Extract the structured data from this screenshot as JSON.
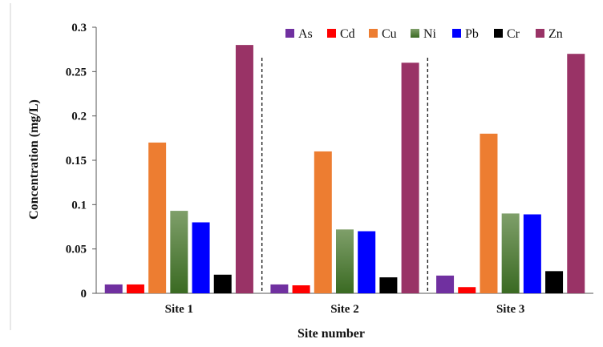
{
  "chart_data": {
    "type": "bar",
    "title": "",
    "xlabel": "Site number",
    "ylabel": "Concentration  (mg/L)",
    "ylim": [
      0,
      0.3
    ],
    "yticks": [
      "0",
      "0.05",
      "0.1",
      "0.15",
      "0.2",
      "0.25",
      "0.3"
    ],
    "grid": false,
    "legend_position": "top-right",
    "categories": [
      "Site 1",
      "Site 2",
      "Site 3"
    ],
    "series": [
      {
        "name": "As",
        "color": "#7030a0",
        "values": [
          0.01,
          0.01,
          0.02
        ]
      },
      {
        "name": "Cd",
        "color": "#ff0000",
        "values": [
          0.01,
          0.009,
          0.007
        ]
      },
      {
        "name": "Cu",
        "color": "#ed7d31",
        "values": [
          0.17,
          0.16,
          0.18
        ]
      },
      {
        "name": "Ni",
        "color": "#4e7a2f",
        "values": [
          0.093,
          0.072,
          0.09
        ]
      },
      {
        "name": "Pb",
        "color": "#0000ff",
        "values": [
          0.08,
          0.07,
          0.089
        ]
      },
      {
        "name": "Cr",
        "color": "#000000",
        "values": [
          0.021,
          0.018,
          0.025
        ]
      },
      {
        "name": "Zn",
        "color": "#993366",
        "values": [
          0.28,
          0.26,
          0.27
        ]
      }
    ]
  }
}
